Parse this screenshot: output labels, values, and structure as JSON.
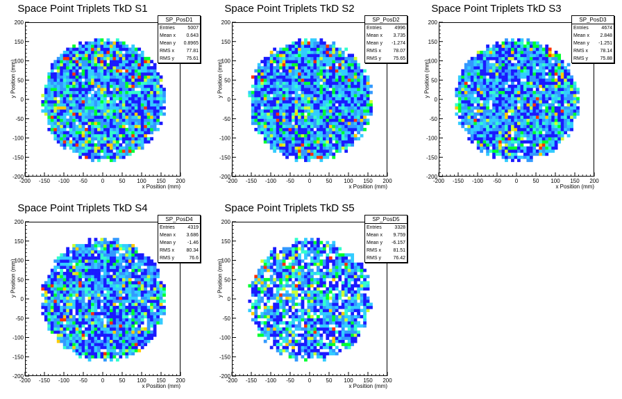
{
  "page": {
    "background": "#ffffff"
  },
  "palette": [
    "#1a1aff",
    "#3399ff",
    "#33ccff",
    "#33ffcc",
    "#00ff33",
    "#ccff33",
    "#ffcc00",
    "#ff3300"
  ],
  "chart_data": [
    {
      "type": "heatmap",
      "title": "Space Point Triplets TkD S1",
      "xlabel": "x Position (mm)",
      "ylabel": "y Position (mm)",
      "xlim": [
        -200,
        200
      ],
      "ylim": [
        -200,
        200
      ],
      "xticks": [
        -200,
        -150,
        -100,
        -50,
        0,
        50,
        100,
        150,
        200
      ],
      "yticks": [
        -200,
        -150,
        -100,
        -50,
        0,
        50,
        100,
        150,
        200
      ],
      "radius": 160,
      "seed": 11,
      "fill": 0.98,
      "stats": {
        "name": "SP_PosD1",
        "rows": [
          {
            "label": "Entries",
            "value": "5007"
          },
          {
            "label": "Mean x",
            "value": "0.643"
          },
          {
            "label": "Mean y",
            "value": "0.8965"
          },
          {
            "label": "RMS x",
            "value": "77.81"
          },
          {
            "label": "RMS y",
            "value": "75.61"
          }
        ]
      }
    },
    {
      "type": "heatmap",
      "title": "Space Point Triplets TkD S2",
      "xlabel": "x Position (mm)",
      "ylabel": "y Position (mm)",
      "xlim": [
        -200,
        200
      ],
      "ylim": [
        -200,
        200
      ],
      "xticks": [
        -200,
        -150,
        -100,
        -50,
        0,
        50,
        100,
        150,
        200
      ],
      "yticks": [
        -200,
        -150,
        -100,
        -50,
        0,
        50,
        100,
        150,
        200
      ],
      "radius": 160,
      "seed": 23,
      "fill": 0.98,
      "stats": {
        "name": "SP_PosD2",
        "rows": [
          {
            "label": "Entries",
            "value": "4996"
          },
          {
            "label": "Mean x",
            "value": "3.735"
          },
          {
            "label": "Mean y",
            "value": "-1.274"
          },
          {
            "label": "RMS x",
            "value": "78.07"
          },
          {
            "label": "RMS y",
            "value": "75.65"
          }
        ]
      }
    },
    {
      "type": "heatmap",
      "title": "Space Point Triplets TkD S3",
      "xlabel": "x Position (mm)",
      "ylabel": "y Position (mm)",
      "xlim": [
        -200,
        200
      ],
      "ylim": [
        -200,
        200
      ],
      "xticks": [
        -200,
        -150,
        -100,
        -50,
        0,
        50,
        100,
        150,
        200
      ],
      "yticks": [
        -200,
        -150,
        -100,
        -50,
        0,
        50,
        100,
        150,
        200
      ],
      "radius": 160,
      "seed": 37,
      "fill": 0.95,
      "stats": {
        "name": "SP_PosD3",
        "rows": [
          {
            "label": "Entries",
            "value": "4674"
          },
          {
            "label": "Mean x",
            "value": "2.848"
          },
          {
            "label": "Mean y",
            "value": "-1.251"
          },
          {
            "label": "RMS x",
            "value": "78.14"
          },
          {
            "label": "RMS y",
            "value": "75.88"
          }
        ]
      }
    },
    {
      "type": "heatmap",
      "title": "Space Point Triplets TkD S4",
      "xlabel": "x Position (mm)",
      "ylabel": "y Position (mm)",
      "xlim": [
        -200,
        200
      ],
      "ylim": [
        -200,
        200
      ],
      "xticks": [
        -200,
        -150,
        -100,
        -50,
        0,
        50,
        100,
        150,
        200
      ],
      "yticks": [
        -200,
        -150,
        -100,
        -50,
        0,
        50,
        100,
        150,
        200
      ],
      "radius": 160,
      "seed": 53,
      "fill": 0.96,
      "stats": {
        "name": "SP_PosD4",
        "rows": [
          {
            "label": "Entries",
            "value": "4319"
          },
          {
            "label": "Mean x",
            "value": "3.686"
          },
          {
            "label": "Mean y",
            "value": "-1.46"
          },
          {
            "label": "RMS x",
            "value": "80.34"
          },
          {
            "label": "RMS y",
            "value": "76.6"
          }
        ]
      }
    },
    {
      "type": "heatmap",
      "title": "Space Point Triplets TkD S5",
      "xlabel": "x Position (mm)",
      "ylabel": "y Position (mm)",
      "xlim": [
        -200,
        200
      ],
      "ylim": [
        -200,
        200
      ],
      "xticks": [
        -200,
        -150,
        -100,
        -50,
        0,
        50,
        100,
        150,
        200
      ],
      "yticks": [
        -200,
        -150,
        -100,
        -50,
        0,
        50,
        100,
        150,
        200
      ],
      "radius": 160,
      "seed": 71,
      "fill": 0.82,
      "stats": {
        "name": "SP_PosD5",
        "rows": [
          {
            "label": "Entries",
            "value": "3328"
          },
          {
            "label": "Mean x",
            "value": "9.759"
          },
          {
            "label": "Mean y",
            "value": "-6.157"
          },
          {
            "label": "RMS x",
            "value": "81.51"
          },
          {
            "label": "RMS y",
            "value": "76.42"
          }
        ]
      }
    }
  ]
}
